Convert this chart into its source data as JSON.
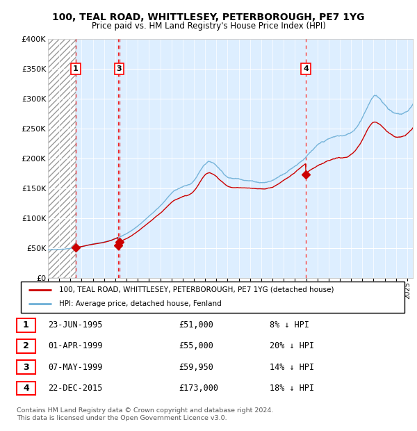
{
  "title": "100, TEAL ROAD, WHITTLESEY, PETERBOROUGH, PE7 1YG",
  "subtitle": "Price paid vs. HM Land Registry's House Price Index (HPI)",
  "ylabel_ticks": [
    "£0",
    "£50K",
    "£100K",
    "£150K",
    "£200K",
    "£250K",
    "£300K",
    "£350K",
    "£400K"
  ],
  "ylabel_values": [
    0,
    50000,
    100000,
    150000,
    200000,
    250000,
    300000,
    350000,
    400000
  ],
  "ylim": [
    0,
    400000
  ],
  "xlim_start": 1993.0,
  "xlim_end": 2025.5,
  "transactions": [
    {
      "num": 1,
      "date_str": "23-JUN-1995",
      "date_year": 1995.47,
      "price": 51000,
      "pct": "8% ↓ HPI"
    },
    {
      "num": 2,
      "date_str": "01-APR-1999",
      "date_year": 1999.25,
      "price": 55000,
      "pct": "20% ↓ HPI"
    },
    {
      "num": 3,
      "date_str": "07-MAY-1999",
      "date_year": 1999.35,
      "price": 59950,
      "pct": "14% ↓ HPI"
    },
    {
      "num": 4,
      "date_str": "22-DEC-2015",
      "date_year": 2015.97,
      "price": 173000,
      "pct": "18% ↓ HPI"
    }
  ],
  "hpi_color": "#6baed6",
  "price_color": "#cc0000",
  "marker_color": "#cc0000",
  "vline_color": "#ee0000",
  "bg_color": "#ddeeff",
  "legend_label_price": "100, TEAL ROAD, WHITTLESEY, PETERBOROUGH, PE7 1YG (detached house)",
  "legend_label_hpi": "HPI: Average price, detached house, Fenland",
  "footer1": "Contains HM Land Registry data © Crown copyright and database right 2024.",
  "footer2": "This data is licensed under the Open Government Licence v3.0.",
  "hpi_anchor_years": [
    1993,
    1994,
    1995,
    1996,
    1997,
    1998,
    1999,
    2000,
    2001,
    2002,
    2003,
    2004,
    2005,
    2006,
    2007,
    2008,
    2009,
    2010,
    2011,
    2012,
    2013,
    2014,
    2015,
    2016,
    2017,
    2018,
    2019,
    2020,
    2021,
    2022,
    2023,
    2024,
    2025
  ],
  "hpi_anchor_values": [
    47000,
    48000,
    50000,
    53000,
    57000,
    60000,
    66000,
    75000,
    88000,
    105000,
    122000,
    143000,
    155000,
    165000,
    195000,
    193000,
    175000,
    172000,
    170000,
    168000,
    172000,
    185000,
    200000,
    218000,
    235000,
    245000,
    250000,
    255000,
    285000,
    322000,
    310000,
    295000,
    300000
  ]
}
